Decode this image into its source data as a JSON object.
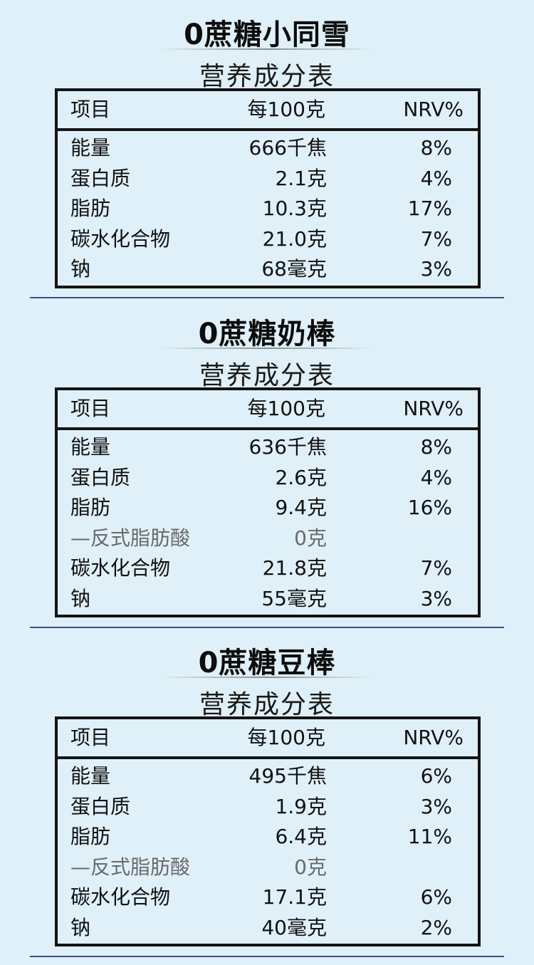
{
  "header": {
    "nrv": "NRV%",
    "item": "项目",
    "per100": "每100克"
  },
  "caption": "营养成分表",
  "products": [
    {
      "title": "0蔗糖小同雪",
      "rows": [
        {
          "name": "能量",
          "amount": "666千焦",
          "nrv": "8%"
        },
        {
          "name": "蛋白质",
          "amount": "2.1克",
          "nrv": "4%"
        },
        {
          "name": "脂肪",
          "amount": "10.3克",
          "nrv": "17%"
        },
        {
          "name": "碳水化合物",
          "amount": "21.0克",
          "nrv": "7%"
        },
        {
          "name": "钠",
          "amount": "68毫克",
          "nrv": "3%"
        }
      ]
    },
    {
      "title": "0蔗糖奶棒",
      "rows": [
        {
          "name": "能量",
          "amount": "636千焦",
          "nrv": "8%"
        },
        {
          "name": "蛋白质",
          "amount": "2.6克",
          "nrv": "4%"
        },
        {
          "name": "脂肪",
          "amount": "9.4克",
          "nrv": "16%"
        },
        {
          "name": "—反式脂肪酸",
          "amount": "0克",
          "nrv": ""
        },
        {
          "name": "碳水化合物",
          "amount": "21.8克",
          "nrv": "7%"
        },
        {
          "name": "钠",
          "amount": "55毫克",
          "nrv": "3%"
        }
      ]
    },
    {
      "title": "0蔗糖豆棒",
      "rows": [
        {
          "name": "能量",
          "amount": "495千焦",
          "nrv": "6%"
        },
        {
          "name": "蛋白质",
          "amount": "1.9克",
          "nrv": "3%"
        },
        {
          "name": "脂肪",
          "amount": "6.4克",
          "nrv": "11%"
        },
        {
          "name": "—反式脂肪酸",
          "amount": "0克",
          "nrv": ""
        },
        {
          "name": "碳水化合物",
          "amount": "17.1克",
          "nrv": "6%"
        },
        {
          "name": "钠",
          "amount": "40毫克",
          "nrv": "2%"
        }
      ]
    }
  ]
}
